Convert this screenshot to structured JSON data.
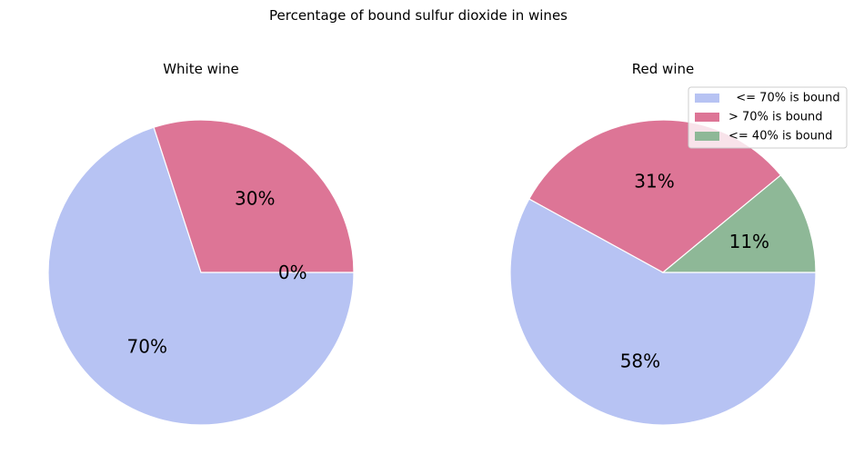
{
  "figure": {
    "title": "Percentage of bound sulfur dioxide in wines"
  },
  "legend": {
    "entries": [
      {
        "label": "  <= 70% is bound",
        "color": "#b7c3f3"
      },
      {
        "label": "> 70% is bound",
        "color": "#dd7596"
      },
      {
        "label": "<= 40% is bound",
        "color": "#8eb897"
      }
    ],
    "placement": "upper-right of second chart"
  },
  "chart_data": [
    {
      "type": "pie",
      "title": "White wine",
      "slices": [
        {
          "label": "  <= 70% is bound",
          "value": 70,
          "display": "70%",
          "color": "#b7c3f3"
        },
        {
          "label": "> 70% is bound",
          "value": 30,
          "display": "30%",
          "color": "#dd7596"
        },
        {
          "label": "<= 40% is bound",
          "value": 0,
          "display": "0%",
          "color": "#8eb897"
        }
      ]
    },
    {
      "type": "pie",
      "title": "Red wine",
      "slices": [
        {
          "label": "  <= 70% is bound",
          "value": 58,
          "display": "58%",
          "color": "#b7c3f3"
        },
        {
          "label": "> 70% is bound",
          "value": 31,
          "display": "31%",
          "color": "#dd7596"
        },
        {
          "label": "<= 40% is bound",
          "value": 11,
          "display": "11%",
          "color": "#8eb897"
        }
      ]
    }
  ]
}
